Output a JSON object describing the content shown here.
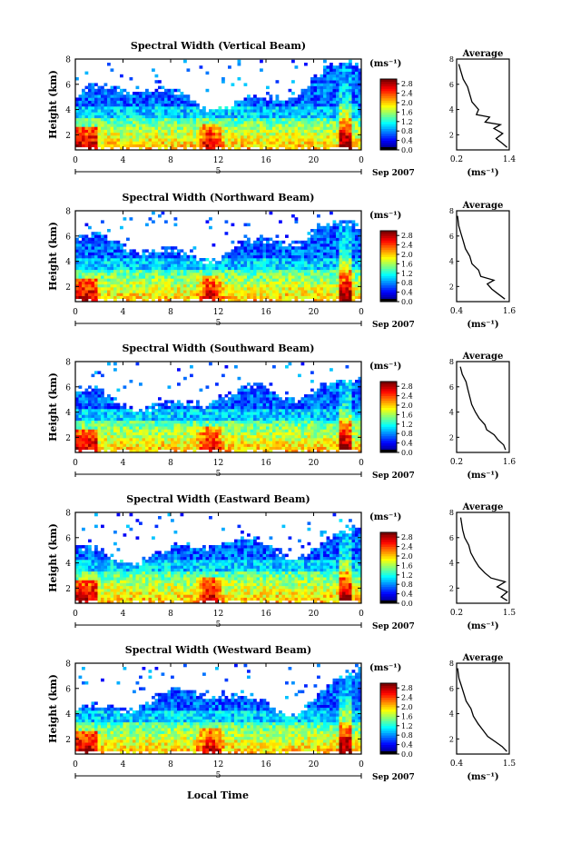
{
  "figure": {
    "xlabel": "Local Time",
    "cbar_unit": "(ms⁻¹)",
    "avg_unit": "(ms⁻¹)",
    "date_label": "Sep 2007",
    "day_label": "5",
    "avg_title": "Average"
  },
  "chart_data": [
    {
      "type": "heatmap",
      "title": "Spectral Width (Vertical Beam)",
      "ylabel": "Height (km)",
      "x_ticks": [
        "0",
        "4",
        "8",
        "12",
        "16",
        "20",
        "0"
      ],
      "y_ticks": [
        "2",
        "4",
        "6",
        "8"
      ],
      "xlim": [
        0,
        24
      ],
      "ylim": [
        0.8,
        8
      ],
      "colorbar": {
        "ticks": [
          "0.0",
          "0.4",
          "0.8",
          "1.2",
          "1.6",
          "2.0",
          "2.4",
          "2.8"
        ],
        "range": [
          0,
          3.0
        ]
      },
      "average": {
        "xlim": [
          0.2,
          1.4
        ],
        "ticks": [
          "0.2",
          "1.4"
        ],
        "profile": [
          [
            1.35,
            1.0
          ],
          [
            1.25,
            1.3
          ],
          [
            1.1,
            1.7
          ],
          [
            1.25,
            2.1
          ],
          [
            1.05,
            2.5
          ],
          [
            1.2,
            2.8
          ],
          [
            0.85,
            3.0
          ],
          [
            0.95,
            3.4
          ],
          [
            0.65,
            3.6
          ],
          [
            0.7,
            4.0
          ],
          [
            0.55,
            4.6
          ],
          [
            0.5,
            5.2
          ],
          [
            0.45,
            5.8
          ],
          [
            0.35,
            6.4
          ],
          [
            0.3,
            7.0
          ],
          [
            0.25,
            7.6
          ]
        ]
      }
    },
    {
      "type": "heatmap",
      "title": "Spectral Width (Northward Beam)",
      "ylabel": "Height (km)",
      "x_ticks": [
        "0",
        "4",
        "8",
        "12",
        "16",
        "20",
        "0"
      ],
      "y_ticks": [
        "2",
        "4",
        "6",
        "8"
      ],
      "xlim": [
        0,
        24
      ],
      "ylim": [
        0.8,
        8
      ],
      "colorbar": {
        "ticks": [
          "0.0",
          "0.4",
          "0.8",
          "1.2",
          "1.6",
          "2.0",
          "2.4",
          "2.8"
        ],
        "range": [
          0,
          3.0
        ]
      },
      "average": {
        "xlim": [
          0.4,
          1.6
        ],
        "ticks": [
          "0.4",
          "1.6"
        ],
        "profile": [
          [
            1.5,
            1.0
          ],
          [
            1.35,
            1.4
          ],
          [
            1.2,
            1.8
          ],
          [
            1.1,
            2.2
          ],
          [
            1.25,
            2.5
          ],
          [
            0.95,
            2.8
          ],
          [
            0.9,
            3.3
          ],
          [
            0.75,
            3.8
          ],
          [
            0.7,
            4.4
          ],
          [
            0.6,
            5.0
          ],
          [
            0.55,
            5.6
          ],
          [
            0.5,
            6.2
          ],
          [
            0.45,
            6.8
          ],
          [
            0.42,
            7.6
          ]
        ]
      }
    },
    {
      "type": "heatmap",
      "title": "Spectral Width (Southward Beam)",
      "ylabel": "Height (km)",
      "x_ticks": [
        "0",
        "4",
        "8",
        "12",
        "16",
        "20",
        "0"
      ],
      "y_ticks": [
        "2",
        "4",
        "6",
        "8"
      ],
      "xlim": [
        0,
        24
      ],
      "ylim": [
        0.8,
        8
      ],
      "colorbar": {
        "ticks": [
          "0.0",
          "0.4",
          "0.8",
          "1.2",
          "1.6",
          "2.0",
          "2.4",
          "2.8"
        ],
        "range": [
          0,
          3.0
        ]
      },
      "average": {
        "xlim": [
          0.2,
          1.6
        ],
        "ticks": [
          "0.2",
          "1.6"
        ],
        "profile": [
          [
            1.5,
            1.0
          ],
          [
            1.45,
            1.4
          ],
          [
            1.3,
            1.8
          ],
          [
            1.2,
            2.2
          ],
          [
            1.0,
            2.6
          ],
          [
            0.95,
            3.0
          ],
          [
            0.8,
            3.5
          ],
          [
            0.7,
            4.0
          ],
          [
            0.6,
            4.6
          ],
          [
            0.55,
            5.2
          ],
          [
            0.5,
            5.8
          ],
          [
            0.45,
            6.4
          ],
          [
            0.35,
            7.0
          ],
          [
            0.3,
            7.6
          ]
        ]
      }
    },
    {
      "type": "heatmap",
      "title": "Spectral Width (Eastward Beam)",
      "ylabel": "Height (km)",
      "x_ticks": [
        "0",
        "4",
        "8",
        "12",
        "16",
        "20",
        "0"
      ],
      "y_ticks": [
        "2",
        "4",
        "6",
        "8"
      ],
      "xlim": [
        0,
        24
      ],
      "ylim": [
        0.8,
        8
      ],
      "colorbar": {
        "ticks": [
          "0.0",
          "0.4",
          "0.8",
          "1.2",
          "1.6",
          "2.0",
          "2.4",
          "2.8"
        ],
        "range": [
          0,
          3.0
        ]
      },
      "average": {
        "xlim": [
          0.2,
          1.5
        ],
        "ticks": [
          "0.2",
          "1.5"
        ],
        "profile": [
          [
            1.45,
            1.0
          ],
          [
            1.3,
            1.3
          ],
          [
            1.45,
            1.7
          ],
          [
            1.2,
            2.1
          ],
          [
            1.4,
            2.5
          ],
          [
            1.05,
            2.8
          ],
          [
            0.9,
            3.2
          ],
          [
            0.75,
            3.7
          ],
          [
            0.65,
            4.2
          ],
          [
            0.55,
            4.8
          ],
          [
            0.5,
            5.4
          ],
          [
            0.4,
            6.0
          ],
          [
            0.35,
            6.6
          ],
          [
            0.3,
            7.6
          ]
        ]
      }
    },
    {
      "type": "heatmap",
      "title": "Spectral Width (Westward Beam)",
      "ylabel": "Height (km)",
      "x_ticks": [
        "0",
        "4",
        "8",
        "12",
        "16",
        "20",
        "0"
      ],
      "y_ticks": [
        "2",
        "4",
        "6",
        "8"
      ],
      "xlim": [
        0,
        24
      ],
      "ylim": [
        0.8,
        8
      ],
      "colorbar": {
        "ticks": [
          "0.0",
          "0.4",
          "0.8",
          "1.2",
          "1.6",
          "2.0",
          "2.4",
          "2.8"
        ],
        "range": [
          0,
          3.0
        ]
      },
      "average": {
        "xlim": [
          0.4,
          1.5
        ],
        "ticks": [
          "0.4",
          "1.5"
        ],
        "profile": [
          [
            1.45,
            1.0
          ],
          [
            1.35,
            1.4
          ],
          [
            1.2,
            1.8
          ],
          [
            1.05,
            2.2
          ],
          [
            0.95,
            2.7
          ],
          [
            0.85,
            3.2
          ],
          [
            0.75,
            3.8
          ],
          [
            0.7,
            4.4
          ],
          [
            0.6,
            5.0
          ],
          [
            0.55,
            5.6
          ],
          [
            0.5,
            6.2
          ],
          [
            0.45,
            6.8
          ],
          [
            0.42,
            7.6
          ]
        ]
      }
    }
  ]
}
